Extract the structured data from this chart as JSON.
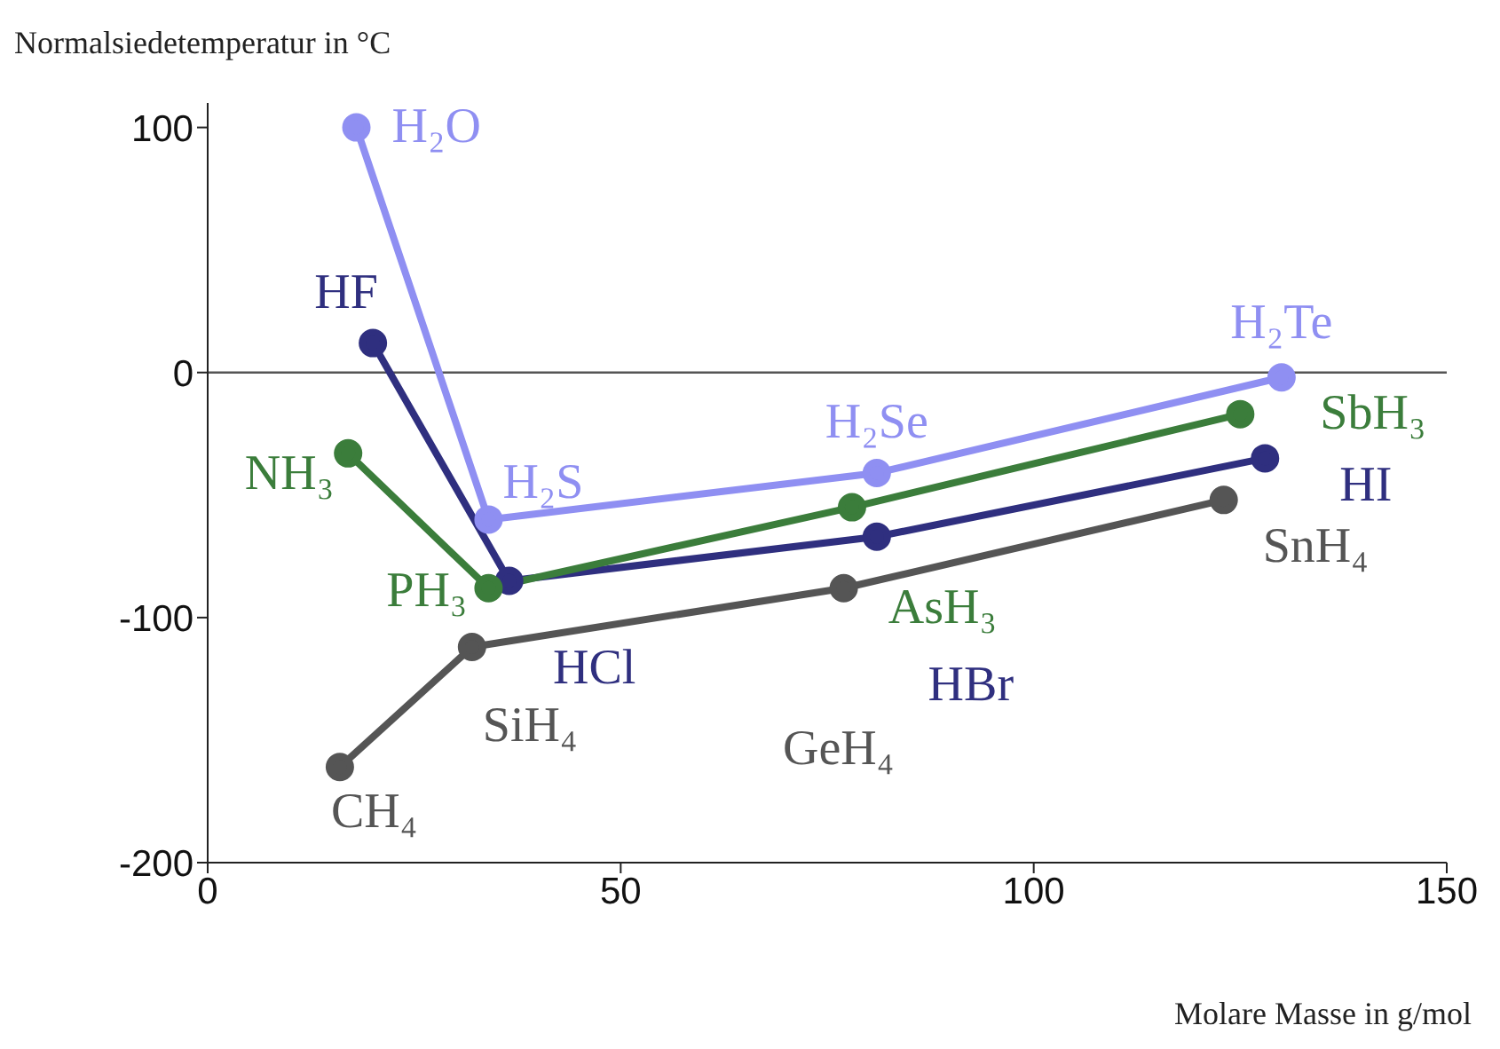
{
  "chart_data": {
    "type": "line",
    "xlabel": "Molare Masse in g/mol",
    "ylabel": "Normalsiedetemperatur in °C",
    "xlim": [
      0,
      150
    ],
    "xticks": [
      0,
      50,
      100,
      150
    ],
    "ylim": [
      -200,
      110
    ],
    "yticks": [
      -200,
      -100,
      0,
      100
    ],
    "grid": false,
    "marker": "circle",
    "line_style": "solid",
    "ref_lines": [
      {
        "axis": "y",
        "value": 0,
        "color": "#555555"
      }
    ],
    "series": [
      {
        "color": "#8f8ff2",
        "x": [
          18,
          34,
          81,
          130
        ],
        "values": [
          100,
          -60,
          -41,
          -2
        ]
      },
      {
        "color": "#2f2f7f",
        "x": [
          20,
          36.5,
          81,
          128
        ],
        "values": [
          12,
          -85,
          -67,
          -35
        ]
      },
      {
        "color": "#3b7d3b",
        "x": [
          17,
          34,
          78,
          125
        ],
        "values": [
          -33,
          -88,
          -55,
          -17
        ]
      },
      {
        "color": "#555555",
        "x": [
          16,
          32,
          77,
          123
        ],
        "values": [
          -161,
          -112,
          -88,
          -52
        ]
      }
    ],
    "annotations": [
      {
        "text": "H₂O",
        "x": 18,
        "y": 100
      },
      {
        "text": "H₂S",
        "x": 34,
        "y": -60
      },
      {
        "text": "H₂Se",
        "x": 81,
        "y": -41
      },
      {
        "text": "H₂Te",
        "x": 130,
        "y": -2
      },
      {
        "text": "HF",
        "x": 20,
        "y": 12
      },
      {
        "text": "HCl",
        "x": 36.5,
        "y": -85
      },
      {
        "text": "HBr",
        "x": 81,
        "y": -67
      },
      {
        "text": "HI",
        "x": 128,
        "y": -35
      },
      {
        "text": "NH₃",
        "x": 17,
        "y": -33
      },
      {
        "text": "PH₃",
        "x": 34,
        "y": -88
      },
      {
        "text": "AsH₃",
        "x": 78,
        "y": -55
      },
      {
        "text": "SbH₃",
        "x": 125,
        "y": -17
      },
      {
        "text": "CH₄",
        "x": 16,
        "y": -161
      },
      {
        "text": "SiH₄",
        "x": 32,
        "y": -112
      },
      {
        "text": "GeH₄",
        "x": 77,
        "y": -88
      },
      {
        "text": "SnH₄",
        "x": 123,
        "y": -52
      }
    ]
  }
}
